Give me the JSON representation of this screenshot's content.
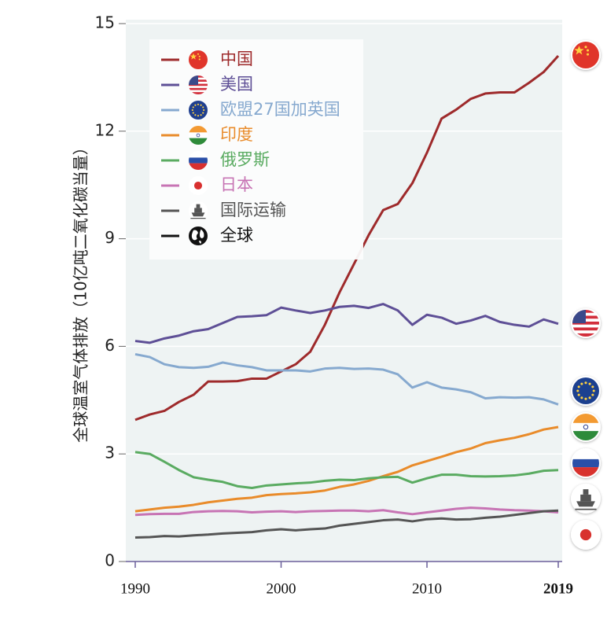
{
  "chart_data": {
    "type": "line",
    "y_label": "全球温室气体排放（10亿吨二氧化碳当量）",
    "x": [
      1990,
      1991,
      1992,
      1993,
      1994,
      1995,
      1996,
      1997,
      1998,
      1999,
      2000,
      2001,
      2002,
      2003,
      2004,
      2005,
      2006,
      2007,
      2008,
      2009,
      2010,
      2011,
      2012,
      2013,
      2014,
      2015,
      2016,
      2017,
      2018,
      2019
    ],
    "xlim": [
      1990,
      2019
    ],
    "xticks": [
      1990,
      2000,
      2010,
      2019
    ],
    "ylim": [
      0,
      15
    ],
    "yticks": [
      0,
      3,
      6,
      9,
      12,
      15
    ],
    "grid": true,
    "series": [
      {
        "name": "中国",
        "color": "#9e2a2b",
        "values": [
          3.95,
          4.1,
          4.2,
          4.45,
          4.65,
          5.02,
          5.02,
          5.03,
          5.1,
          5.1,
          5.3,
          5.5,
          5.85,
          6.6,
          7.5,
          8.3,
          9.1,
          9.8,
          9.97,
          10.55,
          11.4,
          12.35,
          12.6,
          12.9,
          13.05,
          13.08,
          13.08,
          13.35,
          13.65,
          14.1
        ]
      },
      {
        "name": "美国",
        "color": "#5e4f96",
        "values": [
          6.15,
          6.1,
          6.22,
          6.3,
          6.42,
          6.48,
          6.65,
          6.82,
          6.84,
          6.87,
          7.08,
          7.0,
          6.93,
          7.0,
          7.1,
          7.13,
          7.07,
          7.18,
          7.0,
          6.6,
          6.88,
          6.8,
          6.63,
          6.72,
          6.85,
          6.68,
          6.6,
          6.55,
          6.75,
          6.63
        ]
      },
      {
        "name": "欧盟27国加英国",
        "color": "#86a9cf",
        "values": [
          5.78,
          5.7,
          5.5,
          5.42,
          5.4,
          5.43,
          5.55,
          5.47,
          5.42,
          5.33,
          5.33,
          5.33,
          5.3,
          5.38,
          5.4,
          5.37,
          5.38,
          5.35,
          5.22,
          4.85,
          5.0,
          4.85,
          4.8,
          4.72,
          4.55,
          4.58,
          4.57,
          4.58,
          4.52,
          4.38
        ]
      },
      {
        "name": "印度",
        "color": "#e98b2a",
        "values": [
          1.4,
          1.45,
          1.5,
          1.53,
          1.58,
          1.65,
          1.7,
          1.75,
          1.78,
          1.85,
          1.88,
          1.9,
          1.93,
          1.98,
          2.08,
          2.15,
          2.25,
          2.38,
          2.5,
          2.68,
          2.8,
          2.92,
          3.05,
          3.15,
          3.3,
          3.38,
          3.45,
          3.55,
          3.68,
          3.75
        ]
      },
      {
        "name": "俄罗斯",
        "color": "#5aab61",
        "values": [
          3.05,
          3.0,
          2.78,
          2.55,
          2.35,
          2.28,
          2.22,
          2.1,
          2.05,
          2.12,
          2.15,
          2.18,
          2.2,
          2.25,
          2.28,
          2.27,
          2.32,
          2.35,
          2.36,
          2.2,
          2.32,
          2.42,
          2.42,
          2.38,
          2.37,
          2.38,
          2.4,
          2.45,
          2.53,
          2.55
        ]
      },
      {
        "name": "日本",
        "color": "#c774b4",
        "values": [
          1.3,
          1.32,
          1.33,
          1.33,
          1.38,
          1.4,
          1.41,
          1.4,
          1.37,
          1.39,
          1.4,
          1.38,
          1.4,
          1.41,
          1.42,
          1.42,
          1.4,
          1.43,
          1.37,
          1.32,
          1.37,
          1.42,
          1.47,
          1.5,
          1.48,
          1.45,
          1.43,
          1.42,
          1.4,
          1.37
        ]
      },
      {
        "name": "国际运输",
        "color": "#555555",
        "values": [
          0.67,
          0.68,
          0.71,
          0.7,
          0.73,
          0.75,
          0.78,
          0.8,
          0.82,
          0.87,
          0.9,
          0.87,
          0.9,
          0.92,
          1.0,
          1.05,
          1.1,
          1.15,
          1.17,
          1.12,
          1.18,
          1.2,
          1.17,
          1.18,
          1.22,
          1.25,
          1.3,
          1.35,
          1.4,
          1.42
        ]
      }
    ],
    "legend_extra": [
      {
        "name": "全球",
        "color": "#111111"
      }
    ]
  }
}
